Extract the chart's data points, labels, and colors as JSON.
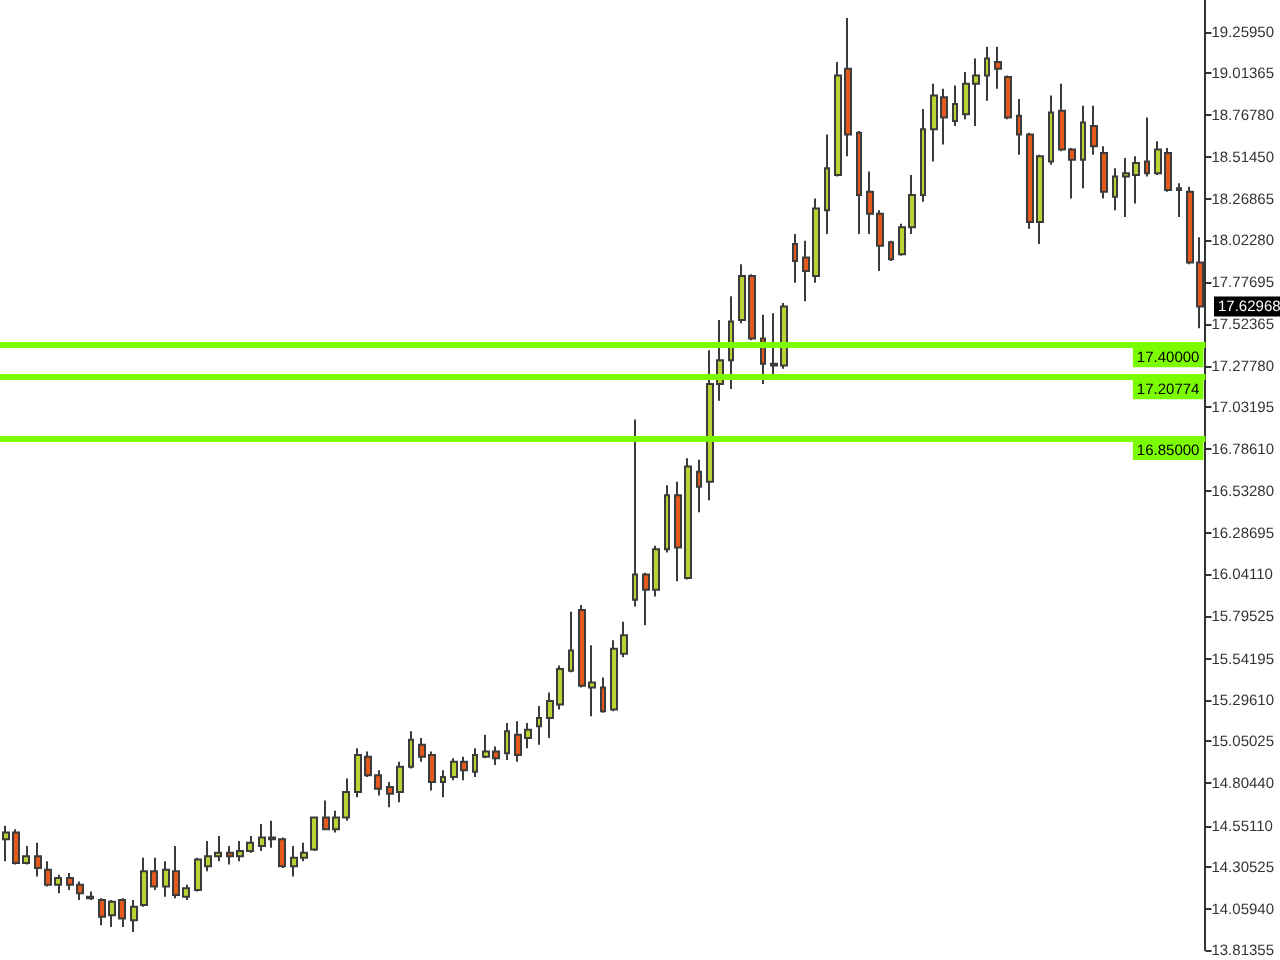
{
  "chart_data": {
    "type": "candlestick",
    "categories": [
      null,
      null,
      null,
      null,
      null,
      null,
      null,
      null,
      null,
      null,
      null,
      null,
      null,
      null,
      null,
      null,
      null,
      null,
      null,
      null,
      null,
      null,
      null,
      null,
      null,
      null,
      null,
      null,
      null,
      null,
      null,
      null,
      null,
      null,
      null,
      null,
      null,
      null,
      null,
      null,
      null,
      null,
      null,
      null,
      null,
      null,
      null,
      null,
      null,
      null,
      null,
      null,
      null,
      null,
      null,
      null,
      null,
      null,
      null,
      null,
      null,
      null,
      null,
      null,
      null,
      null,
      null,
      null,
      null,
      null,
      null,
      null,
      null,
      null,
      null,
      null,
      null,
      null,
      null,
      null,
      null,
      null,
      null,
      null,
      null,
      null,
      null,
      null,
      null,
      null,
      null,
      null,
      null,
      null,
      null,
      null,
      null,
      null,
      null,
      null,
      null,
      null,
      null,
      null,
      null,
      null,
      null,
      null,
      null,
      null,
      null,
      null,
      null
    ],
    "ohlc": [
      [
        14.47,
        14.55,
        14.34,
        14.51
      ],
      [
        14.51,
        14.53,
        14.32,
        14.33
      ],
      [
        14.33,
        14.43,
        14.32,
        14.37
      ],
      [
        14.37,
        14.45,
        14.25,
        14.3
      ],
      [
        14.29,
        14.34,
        14.19,
        14.2
      ],
      [
        14.2,
        14.26,
        14.15,
        14.24
      ],
      [
        14.24,
        14.27,
        14.17,
        14.2
      ],
      [
        14.2,
        14.22,
        14.11,
        14.15
      ],
      [
        14.13,
        14.16,
        14.11,
        14.12
      ],
      [
        14.11,
        14.12,
        13.96,
        14.01
      ],
      [
        14.02,
        14.11,
        13.95,
        14.1
      ],
      [
        14.11,
        14.12,
        13.95,
        14.0
      ],
      [
        13.99,
        14.11,
        13.92,
        14.07
      ],
      [
        14.08,
        14.36,
        14.07,
        14.28
      ],
      [
        14.28,
        14.36,
        14.17,
        14.19
      ],
      [
        14.19,
        14.34,
        14.13,
        14.29
      ],
      [
        14.28,
        14.43,
        14.12,
        14.14
      ],
      [
        14.13,
        14.2,
        14.11,
        14.18
      ],
      [
        14.17,
        14.36,
        14.16,
        14.35
      ],
      [
        14.31,
        14.46,
        14.28,
        14.37
      ],
      [
        14.37,
        14.49,
        14.34,
        14.39
      ],
      [
        14.39,
        14.43,
        14.32,
        14.37
      ],
      [
        14.37,
        14.46,
        14.34,
        14.4
      ],
      [
        14.4,
        14.49,
        14.39,
        14.45
      ],
      [
        14.43,
        14.56,
        14.4,
        14.48
      ],
      [
        14.48,
        14.58,
        14.42,
        14.47
      ],
      [
        14.47,
        14.48,
        14.3,
        14.31
      ],
      [
        14.31,
        14.43,
        14.25,
        14.36
      ],
      [
        14.36,
        14.45,
        14.34,
        14.39
      ],
      [
        14.41,
        14.6,
        14.4,
        14.6
      ],
      [
        14.6,
        14.7,
        14.53,
        14.53
      ],
      [
        14.53,
        14.64,
        14.51,
        14.6
      ],
      [
        14.6,
        14.83,
        14.58,
        14.75
      ],
      [
        14.75,
        15.01,
        14.72,
        14.97
      ],
      [
        14.96,
        14.99,
        14.84,
        14.85
      ],
      [
        14.85,
        14.88,
        14.73,
        14.77
      ],
      [
        14.78,
        14.81,
        14.66,
        14.74
      ],
      [
        14.75,
        14.93,
        14.69,
        14.9
      ],
      [
        14.9,
        15.11,
        14.89,
        15.06
      ],
      [
        15.03,
        15.07,
        14.93,
        14.96
      ],
      [
        14.97,
        14.99,
        14.76,
        14.81
      ],
      [
        14.81,
        14.88,
        14.72,
        14.84
      ],
      [
        14.84,
        14.95,
        14.82,
        14.93
      ],
      [
        14.93,
        14.96,
        14.82,
        14.88
      ],
      [
        14.87,
        15.01,
        14.84,
        14.97
      ],
      [
        14.96,
        15.09,
        14.95,
        14.99
      ],
      [
        14.99,
        15.02,
        14.91,
        14.95
      ],
      [
        14.98,
        15.16,
        14.94,
        15.11
      ],
      [
        15.09,
        15.17,
        14.93,
        14.97
      ],
      [
        15.07,
        15.16,
        15.01,
        15.12
      ],
      [
        15.14,
        15.26,
        15.03,
        15.19
      ],
      [
        15.19,
        15.34,
        15.07,
        15.29
      ],
      [
        15.27,
        15.5,
        15.24,
        15.48
      ],
      [
        15.47,
        15.82,
        15.46,
        15.59
      ],
      [
        15.83,
        15.86,
        15.37,
        15.38
      ],
      [
        15.37,
        15.62,
        15.2,
        15.4
      ],
      [
        15.37,
        15.43,
        15.22,
        15.23
      ],
      [
        15.24,
        15.65,
        15.23,
        15.6
      ],
      [
        15.57,
        15.76,
        15.55,
        15.68
      ],
      [
        15.89,
        16.96,
        15.85,
        16.04
      ],
      [
        16.04,
        16.05,
        15.74,
        15.95
      ],
      [
        15.95,
        16.21,
        15.91,
        16.19
      ],
      [
        16.19,
        16.57,
        16.17,
        16.51
      ],
      [
        16.51,
        16.59,
        16.0,
        16.2
      ],
      [
        16.02,
        16.73,
        16.01,
        16.68
      ],
      [
        16.65,
        16.72,
        16.41,
        16.56
      ],
      [
        16.59,
        17.37,
        16.48,
        17.17
      ],
      [
        17.17,
        17.55,
        17.07,
        17.31
      ],
      [
        17.31,
        17.69,
        17.14,
        17.54
      ],
      [
        17.55,
        17.88,
        17.53,
        17.81
      ],
      [
        17.81,
        17.82,
        17.43,
        17.44
      ],
      [
        17.44,
        17.58,
        17.17,
        17.29
      ],
      [
        17.28,
        17.59,
        17.22,
        17.29
      ],
      [
        17.28,
        17.65,
        17.26,
        17.63
      ],
      [
        18.0,
        18.06,
        17.77,
        17.9
      ],
      [
        17.92,
        18.02,
        17.66,
        17.84
      ],
      [
        17.81,
        18.27,
        17.77,
        18.21
      ],
      [
        18.2,
        18.65,
        18.06,
        18.45
      ],
      [
        18.41,
        19.08,
        18.4,
        19.0
      ],
      [
        19.04,
        19.34,
        18.52,
        18.65
      ],
      [
        18.66,
        18.67,
        18.06,
        18.29
      ],
      [
        18.31,
        18.43,
        18.06,
        18.18
      ],
      [
        18.18,
        18.2,
        17.84,
        17.99
      ],
      [
        18.01,
        18.02,
        17.9,
        17.91
      ],
      [
        17.94,
        18.12,
        17.93,
        18.1
      ],
      [
        18.1,
        18.41,
        18.06,
        18.29
      ],
      [
        18.29,
        18.8,
        18.25,
        18.68
      ],
      [
        18.68,
        18.95,
        18.49,
        18.88
      ],
      [
        18.87,
        18.92,
        18.59,
        18.75
      ],
      [
        18.73,
        18.94,
        18.7,
        18.83
      ],
      [
        18.77,
        19.02,
        18.74,
        18.95
      ],
      [
        18.95,
        19.1,
        18.7,
        19.0
      ],
      [
        19.0,
        19.17,
        18.85,
        19.1
      ],
      [
        19.08,
        19.17,
        18.92,
        19.04
      ],
      [
        18.99,
        19.0,
        18.74,
        18.75
      ],
      [
        18.76,
        18.86,
        18.53,
        18.65
      ],
      [
        18.65,
        18.66,
        18.09,
        18.13
      ],
      [
        18.13,
        18.53,
        18.0,
        18.52
      ],
      [
        18.49,
        18.88,
        18.47,
        18.78
      ],
      [
        18.79,
        18.95,
        18.55,
        18.56
      ],
      [
        18.56,
        18.57,
        18.27,
        18.5
      ],
      [
        18.5,
        18.82,
        18.33,
        18.72
      ],
      [
        18.7,
        18.82,
        18.53,
        18.58
      ],
      [
        18.54,
        18.58,
        18.27,
        18.31
      ],
      [
        18.28,
        18.45,
        18.2,
        18.4
      ],
      [
        18.4,
        18.51,
        18.16,
        18.42
      ],
      [
        18.41,
        18.52,
        18.24,
        18.48
      ],
      [
        18.49,
        18.75,
        18.4,
        18.42
      ],
      [
        18.42,
        18.61,
        18.41,
        18.56
      ],
      [
        18.54,
        18.57,
        18.31,
        18.32
      ],
      [
        18.33,
        18.36,
        18.16,
        18.32
      ],
      [
        18.31,
        18.34,
        17.88,
        17.89
      ],
      [
        17.89,
        18.04,
        17.5,
        17.63
      ]
    ],
    "colors": [
      "#b8d432",
      "#e35a1c",
      "#b8d432",
      "#e35a1c",
      "#e35a1c",
      "#b8d432",
      "#e35a1c",
      "#e35a1c",
      "#e35a1c",
      "#e35a1c",
      "#b8d432",
      "#e35a1c",
      "#b8d432",
      "#b8d432",
      "#e35a1c",
      "#b8d432",
      "#e35a1c",
      "#b8d432",
      "#b8d432",
      "#b8d432",
      "#b8d432",
      "#e35a1c",
      "#b8d432",
      "#b8d432",
      "#b8d432",
      "#e35a1c",
      "#e35a1c",
      "#b8d432",
      "#b8d432",
      "#b8d432",
      "#e35a1c",
      "#b8d432",
      "#b8d432",
      "#b8d432",
      "#e35a1c",
      "#e35a1c",
      "#e35a1c",
      "#b8d432",
      "#b8d432",
      "#e35a1c",
      "#e35a1c",
      "#b8d432",
      "#b8d432",
      "#e35a1c",
      "#b8d432",
      "#b8d432",
      "#e35a1c",
      "#b8d432",
      "#e35a1c",
      "#b8d432",
      "#b8d432",
      "#b8d432",
      "#b8d432",
      "#b8d432",
      "#e35a1c",
      "#b8d432",
      "#e35a1c",
      "#b8d432",
      "#b8d432",
      "#b8d432",
      "#e35a1c",
      "#b8d432",
      "#b8d432",
      "#e35a1c",
      "#b8d432",
      "#e35a1c",
      "#b8d432",
      "#b8d432",
      "#b8d432",
      "#b8d432",
      "#e35a1c",
      "#e35a1c",
      "#b8d432",
      "#b8d432",
      "#e35a1c",
      "#e35a1c",
      "#b8d432",
      "#b8d432",
      "#b8d432",
      "#e35a1c",
      "#e35a1c",
      "#e35a1c",
      "#e35a1c",
      "#e35a1c",
      "#b8d432",
      "#b8d432",
      "#b8d432",
      "#b8d432",
      "#e35a1c",
      "#b8d432",
      "#b8d432",
      "#b8d432",
      "#b8d432",
      "#e35a1c",
      "#e35a1c",
      "#e35a1c",
      "#e35a1c",
      "#b8d432",
      "#b8d432",
      "#e35a1c",
      "#e35a1c",
      "#b8d432",
      "#e35a1c",
      "#e35a1c",
      "#b8d432",
      "#b8d432",
      "#b8d432",
      "#e35a1c",
      "#b8d432",
      "#e35a1c",
      "#e35a1c",
      "#e35a1c",
      "#e35a1c"
    ],
    "ylim": [
      13.81355,
      19.447
    ],
    "yticks": [
      {
        "value": 19.2595,
        "label": "19.25950"
      },
      {
        "value": 19.01365,
        "label": "19.01365"
      },
      {
        "value": 18.7678,
        "label": "18.76780"
      },
      {
        "value": 18.5145,
        "label": "18.51450"
      },
      {
        "value": 18.26865,
        "label": "18.26865"
      },
      {
        "value": 18.0228,
        "label": "18.02280"
      },
      {
        "value": 17.77695,
        "label": "17.77695"
      },
      {
        "value": 17.52365,
        "label": "17.52365"
      },
      {
        "value": 17.2778,
        "label": "17.27780"
      },
      {
        "value": 17.03195,
        "label": "17.03195"
      },
      {
        "value": 16.7861,
        "label": "16.78610"
      },
      {
        "value": 16.5328,
        "label": "16.53280"
      },
      {
        "value": 16.28695,
        "label": "16.28695"
      },
      {
        "value": 16.0411,
        "label": "16.04110"
      },
      {
        "value": 15.79525,
        "label": "15.79525"
      },
      {
        "value": 15.54195,
        "label": "15.54195"
      },
      {
        "value": 15.2961,
        "label": "15.29610"
      },
      {
        "value": 15.05025,
        "label": "15.05025"
      },
      {
        "value": 14.8044,
        "label": "14.80440"
      },
      {
        "value": 14.5511,
        "label": "14.55110"
      },
      {
        "value": 14.30525,
        "label": "14.30525"
      },
      {
        "value": 14.0594,
        "label": "14.05940"
      },
      {
        "value": 13.81355,
        "label": "13.81355"
      }
    ],
    "tick_labels": "y",
    "ref_lines": [
      {
        "axis": "y",
        "value": 17.4,
        "label": "17.40000",
        "color": "#7cfc00"
      },
      {
        "axis": "y",
        "value": 17.20774,
        "label": "17.20774",
        "color": "#7cfc00"
      },
      {
        "axis": "y",
        "value": 16.85,
        "label": "16.85000",
        "color": "#7cfc00"
      }
    ],
    "annotations": [
      "17.62968"
    ]
  }
}
